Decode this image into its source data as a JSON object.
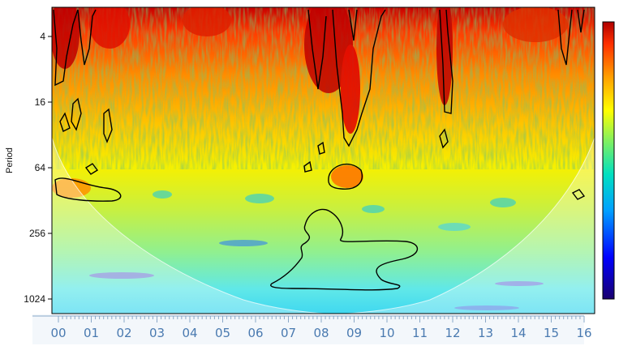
{
  "chart_data": {
    "type": "heatmap",
    "title": "",
    "xlabel": "",
    "ylabel": "Period",
    "x_ticks": [
      "00",
      "01",
      "02",
      "03",
      "04",
      "05",
      "06",
      "07",
      "08",
      "09",
      "10",
      "11",
      "12",
      "13",
      "14",
      "15",
      "16"
    ],
    "y_ticks": [
      4,
      16,
      64,
      256,
      1024
    ],
    "y_scale": "log2",
    "y_reversed": true,
    "colorbar": {
      "palette": "jet",
      "colors": [
        "#1a006e",
        "#0000ff",
        "#00a0ff",
        "#00e0c0",
        "#80f060",
        "#ffff00",
        "#ffa000",
        "#ff3000",
        "#b00000"
      ],
      "tick_labels": []
    },
    "cone_of_influence": true,
    "significance_contours": true,
    "border_color": "#000000"
  }
}
